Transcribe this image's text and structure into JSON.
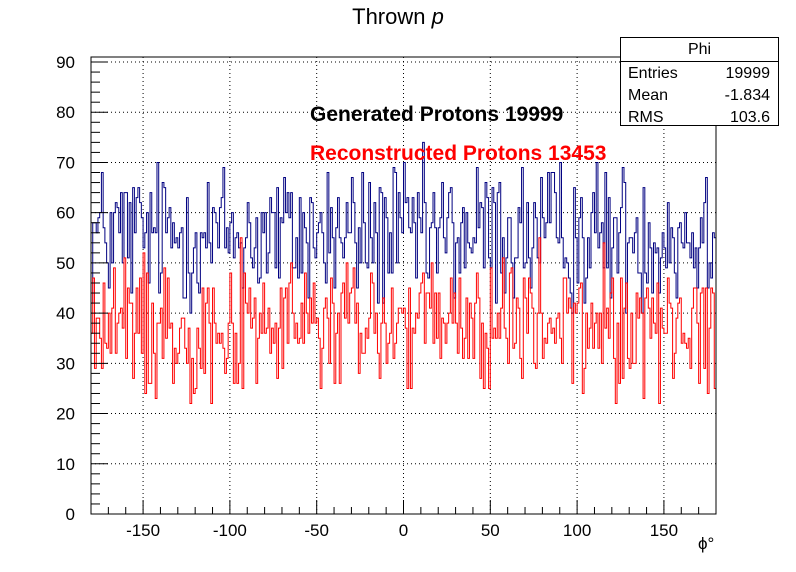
{
  "chart_data": {
    "type": "histogram",
    "title_main": "Thrown",
    "title_symbol": "p",
    "xlabel": "ϕ°",
    "ylabel": "",
    "xlim": [
      -180,
      180
    ],
    "ylim": [
      0,
      91
    ],
    "bin_width": 1,
    "x_ticks": [
      "-150",
      "-100",
      "-50",
      "0",
      "50",
      "100",
      "150"
    ],
    "x_tick_values": [
      -150,
      -100,
      -50,
      0,
      50,
      100,
      150
    ],
    "y_ticks": [
      "0",
      "10",
      "20",
      "30",
      "40",
      "50",
      "60",
      "70",
      "80",
      "90"
    ],
    "y_tick_values": [
      0,
      10,
      20,
      30,
      40,
      50,
      60,
      70,
      80,
      90
    ],
    "grid": true,
    "stats_box": {
      "name": "Phi",
      "rows": [
        {
          "label": "Entries",
          "value": "19999"
        },
        {
          "label": "Mean",
          "value": "-1.834"
        },
        {
          "label": "RMS",
          "value": "103.6"
        }
      ]
    },
    "annotations": [
      {
        "text": "Generated Protons 19999",
        "color": "#000000"
      },
      {
        "text": "Reconstructed Protons 13453",
        "color": "#ff0000"
      }
    ],
    "series": [
      {
        "name": "Generated Protons 19999",
        "color": "#000080",
        "mean_level": 55.5,
        "range": [
          40,
          75
        ]
      },
      {
        "name": "Reconstructed Protons 13453",
        "color": "#ff0000",
        "mean_level": 37.4,
        "range": [
          22,
          55
        ]
      }
    ]
  }
}
